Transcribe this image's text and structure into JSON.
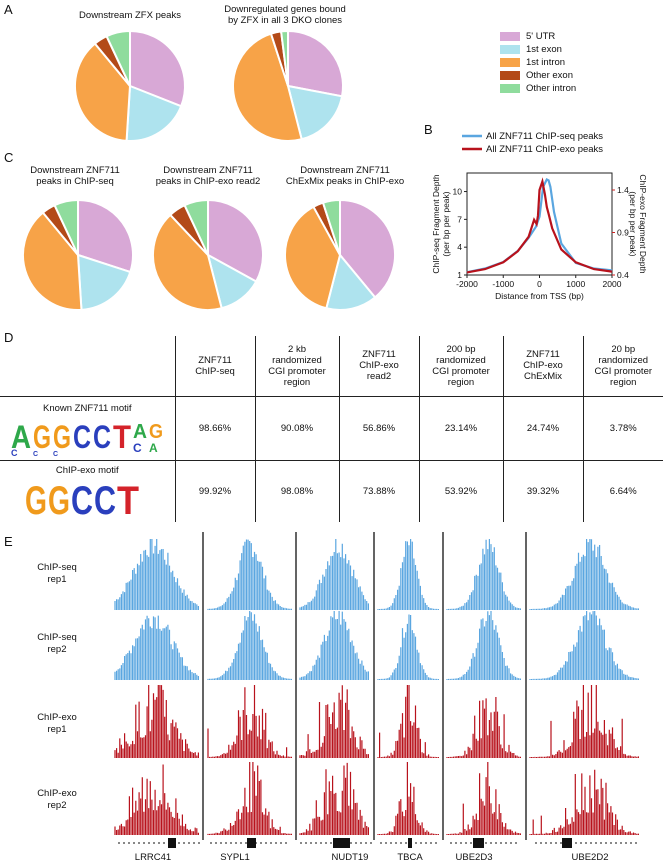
{
  "panels": {
    "A": "A",
    "B": "B",
    "C": "C",
    "D": "D",
    "E": "E"
  },
  "colors": {
    "utr5": "#d8a8d6",
    "exon1": "#aee3ee",
    "intron1": "#f7a348",
    "other_exon": "#b34a18",
    "other_intron": "#8fdc9d",
    "chipseq": "#5aa6e0",
    "chipexo": "#b8121c"
  },
  "panelA": {
    "titles": [
      "Downstream ZFX peaks",
      "Downregulated genes bound\nby ZFX in all 3 DKO clones"
    ]
  },
  "panelC": {
    "titles": [
      "Downstream ZNF711\npeaks in ChIP-seq",
      "Downstream ZNF711\npeaks in ChIP-exo read2",
      "Downstream ZNF711\nChExMix peaks in ChIP-exo"
    ]
  },
  "legend": [
    "5' UTR",
    "1st exon",
    "1st intron",
    "Other exon",
    "Other intron"
  ],
  "chart_data": [
    {
      "type": "pie",
      "title": "Downstream ZFX peaks",
      "categories": [
        "5' UTR",
        "1st exon",
        "1st intron",
        "Other exon",
        "Other intron"
      ],
      "values": [
        31,
        20,
        38,
        4,
        7
      ]
    },
    {
      "type": "pie",
      "title": "Downregulated genes bound by ZFX in all 3 DKO clones",
      "categories": [
        "5' UTR",
        "1st exon",
        "1st intron",
        "Other exon",
        "Other intron"
      ],
      "values": [
        28,
        18,
        49,
        3,
        2
      ]
    },
    {
      "type": "pie",
      "title": "Downstream ZNF711 peaks in ChIP-seq",
      "categories": [
        "5' UTR",
        "1st exon",
        "1st intron",
        "Other exon",
        "Other intron"
      ],
      "values": [
        30,
        19,
        40,
        4,
        7
      ]
    },
    {
      "type": "pie",
      "title": "Downstream ZNF711 peaks in ChIP-exo read2",
      "categories": [
        "5' UTR",
        "1st exon",
        "1st intron",
        "Other exon",
        "Other intron"
      ],
      "values": [
        33,
        13,
        42,
        5,
        7
      ]
    },
    {
      "type": "pie",
      "title": "Downstream ZNF711 ChExMix peaks in ChIP-exo",
      "categories": [
        "5' UTR",
        "1st exon",
        "1st intron",
        "Other exon",
        "Other intron"
      ],
      "values": [
        39,
        15,
        38,
        3,
        5
      ]
    },
    {
      "type": "line",
      "xlabel": "Distance from TSS (bp)",
      "ylabel": "ChIP-seq Fragment Depth (per bp per peak)",
      "y2label": "ChIP-exo Fragment Depth (per bp per peak)",
      "xlim": [
        -2000,
        2000
      ],
      "xticks": [
        "-2000",
        "-1000",
        "0",
        "1000",
        "2000"
      ],
      "yticks": [
        "1",
        "4",
        "7",
        "10"
      ],
      "y2ticks": [
        "0.4",
        "0.9",
        "1.4"
      ],
      "legend_position": "top",
      "series": [
        {
          "name": "All ZNF711 ChIP-seq peaks",
          "x": [
            -2000,
            -1500,
            -1000,
            -600,
            -300,
            -100,
            0,
            100,
            200,
            250,
            300,
            400,
            600,
            1000,
            1500,
            2000
          ],
          "y": [
            1.3,
            1.7,
            2.4,
            3.6,
            5.0,
            6.2,
            7.3,
            10.5,
            11.3,
            11.2,
            10.5,
            7.8,
            4.4,
            2.3,
            1.7,
            1.5
          ]
        },
        {
          "name": "All ZNF711 ChIP-exo peaks",
          "x": [
            -2000,
            -1500,
            -1000,
            -600,
            -300,
            -150,
            -80,
            -40,
            0,
            80,
            150,
            200,
            250,
            350,
            600,
            1000,
            1500,
            2000
          ],
          "y": [
            0.43,
            0.47,
            0.55,
            0.68,
            0.85,
            1.05,
            1.0,
            1.1,
            1.4,
            1.5,
            1.35,
            1.2,
            1.12,
            0.95,
            0.7,
            0.55,
            0.47,
            0.44
          ]
        }
      ]
    }
  ],
  "table": {
    "headers": [
      "ZNF711\nChIP-seq",
      "2 kb\nrandomized\nCGI promoter\nregion",
      "ZNF711\nChIP-exo\nread2",
      "200 bp\nrandomized\nCGI promoter\nregion",
      "ZNF711\nChIP-exo\nChExMix",
      "20 bp\nrandomized\nCGI promoter\nregion"
    ],
    "rows": [
      {
        "label": "Known ZNF711 motif",
        "logo": "AGGCCTAG",
        "values": [
          "98.66%",
          "90.08%",
          "56.86%",
          "23.14%",
          "24.74%",
          "3.78%"
        ]
      },
      {
        "label": "ChIP-exo motif",
        "logo": "GGCCT",
        "values": [
          "99.92%",
          "98.08%",
          "73.88%",
          "53.92%",
          "39.32%",
          "6.64%"
        ]
      }
    ]
  },
  "tracks": [
    "ChIP-seq\nrep1",
    "ChIP-seq\nrep2",
    "ChIP-exo\nrep1",
    "ChIP-exo\nrep2"
  ],
  "genes": [
    "LRRC41",
    "SYPL1",
    "NUDT19",
    "TBCA",
    "UBE2D3",
    "UBE2D2"
  ]
}
